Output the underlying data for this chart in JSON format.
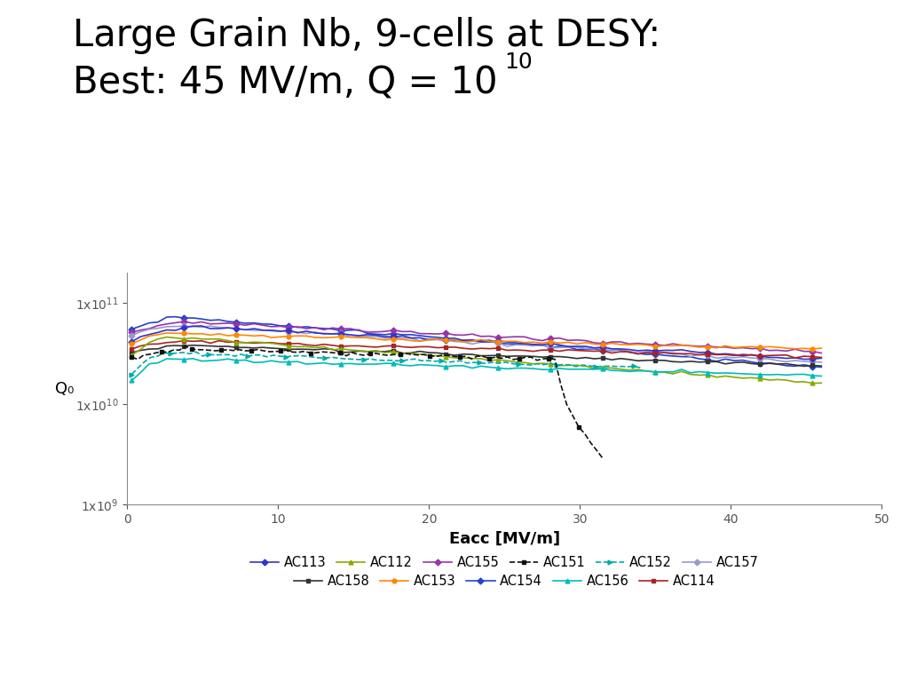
{
  "title_line1": "Large Grain Nb, 9-cells at DESY:",
  "title_line2": "Best: 45 MV/m, Q = 10",
  "title_exp": "10",
  "xlabel": "Eacc [MV/m]",
  "ylabel": "Q₀",
  "xlim": [
    0,
    50
  ],
  "ylim_log": [
    1000000000.0,
    200000000000.0
  ],
  "xticks": [
    0,
    10,
    20,
    30,
    40,
    50
  ],
  "series": {
    "AC113": {
      "color": "#3333CC",
      "marker": "D",
      "markersize": 3.5,
      "lw": 1.2,
      "dashed": false
    },
    "AC112": {
      "color": "#88AA00",
      "marker": "^",
      "markersize": 3.5,
      "lw": 1.2,
      "dashed": false
    },
    "AC155": {
      "color": "#9933AA",
      "marker": "D",
      "markersize": 3.5,
      "lw": 1.2,
      "dashed": false
    },
    "AC151": {
      "color": "#111111",
      "marker": "s",
      "markersize": 3.5,
      "lw": 1.2,
      "dashed": true
    },
    "AC152": {
      "color": "#00AAAA",
      "marker": ">",
      "markersize": 3.5,
      "lw": 1.2,
      "dashed": true
    },
    "AC157": {
      "color": "#9999CC",
      "marker": "D",
      "markersize": 3.5,
      "lw": 1.2,
      "dashed": false
    },
    "AC158": {
      "color": "#333333",
      "marker": "s",
      "markersize": 3.5,
      "lw": 1.2,
      "dashed": false
    },
    "AC153": {
      "color": "#FF8800",
      "marker": "o",
      "markersize": 3.5,
      "lw": 1.2,
      "dashed": false
    },
    "AC154": {
      "color": "#2244CC",
      "marker": "D",
      "markersize": 3.5,
      "lw": 1.2,
      "dashed": false
    },
    "AC156": {
      "color": "#00BBBB",
      "marker": "^",
      "markersize": 3.5,
      "lw": 1.2,
      "dashed": false
    },
    "AC114": {
      "color": "#AA2222",
      "marker": "s",
      "markersize": 3.5,
      "lw": 1.2,
      "dashed": false
    }
  },
  "legend_row1": [
    "AC113",
    "AC112",
    "AC155",
    "AC151",
    "AC152",
    "AC157"
  ],
  "legend_row2": [
    "AC158",
    "AC153",
    "AC154",
    "AC156",
    "AC114"
  ],
  "background_color": "#ffffff",
  "title_fontsize": 30,
  "axis_label_fontsize": 13,
  "legend_fontsize": 10.5
}
